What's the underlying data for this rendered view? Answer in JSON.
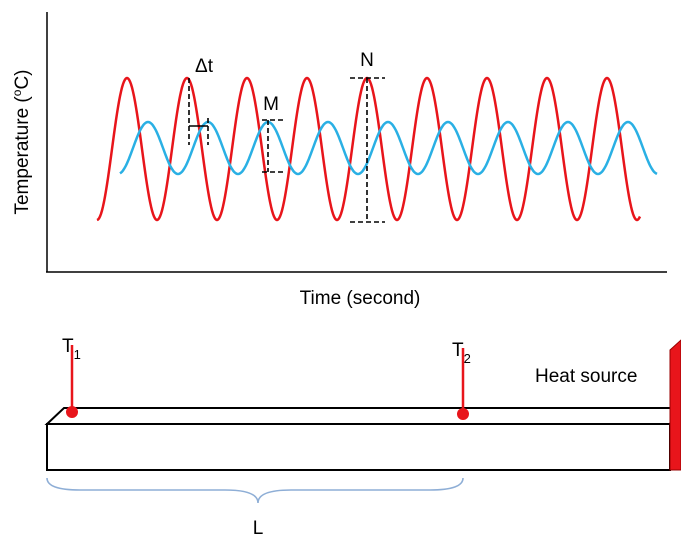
{
  "plot": {
    "y_axis_label": {
      "before": "Temperature (",
      "sup": "o",
      "after": "C)"
    },
    "x_axis_label": "Time (second)",
    "annotations": {
      "delta_t": "Δt",
      "m": "M",
      "n": "N"
    }
  },
  "rod": {
    "t1": {
      "base": "T",
      "sub": "1"
    },
    "t2": {
      "base": "T",
      "sub": "2"
    },
    "heat_source": "Heat source",
    "length": "L"
  }
}
